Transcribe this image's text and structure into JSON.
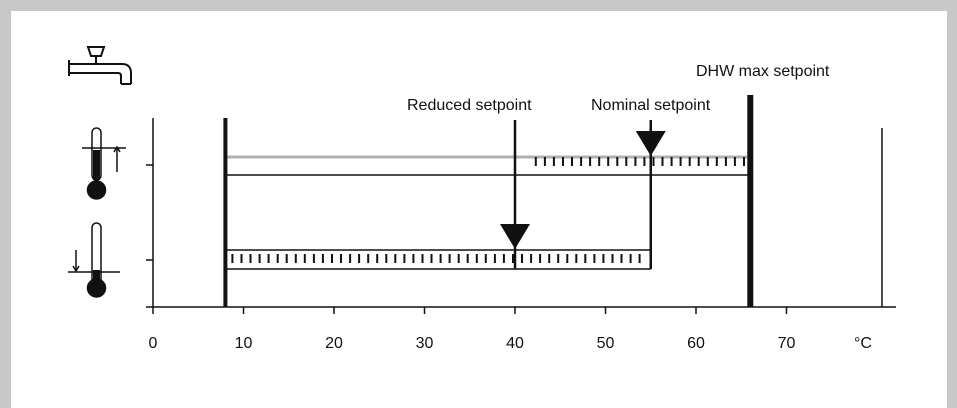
{
  "diagram": {
    "labels": {
      "dhw_max": "DHW max setpoint",
      "reduced": "Reduced setpoint",
      "nominal": "Nominal setpoint",
      "unit": "°C"
    },
    "axis": {
      "min": 0,
      "max": 78,
      "ticks": [
        0,
        10,
        20,
        30,
        40,
        50,
        60,
        70
      ]
    },
    "setpoints": {
      "frost_protection": 8,
      "reduced": 40,
      "nominal": 55,
      "dhw_max": 66
    },
    "icons": {
      "tap": "tap-icon",
      "thermometer_high": "thermometer-high-icon",
      "thermometer_low": "thermometer-low-icon"
    },
    "colors": {
      "line": "#111111",
      "upper_band": "#b0b0b0",
      "frame": "#c8c8c8"
    }
  }
}
